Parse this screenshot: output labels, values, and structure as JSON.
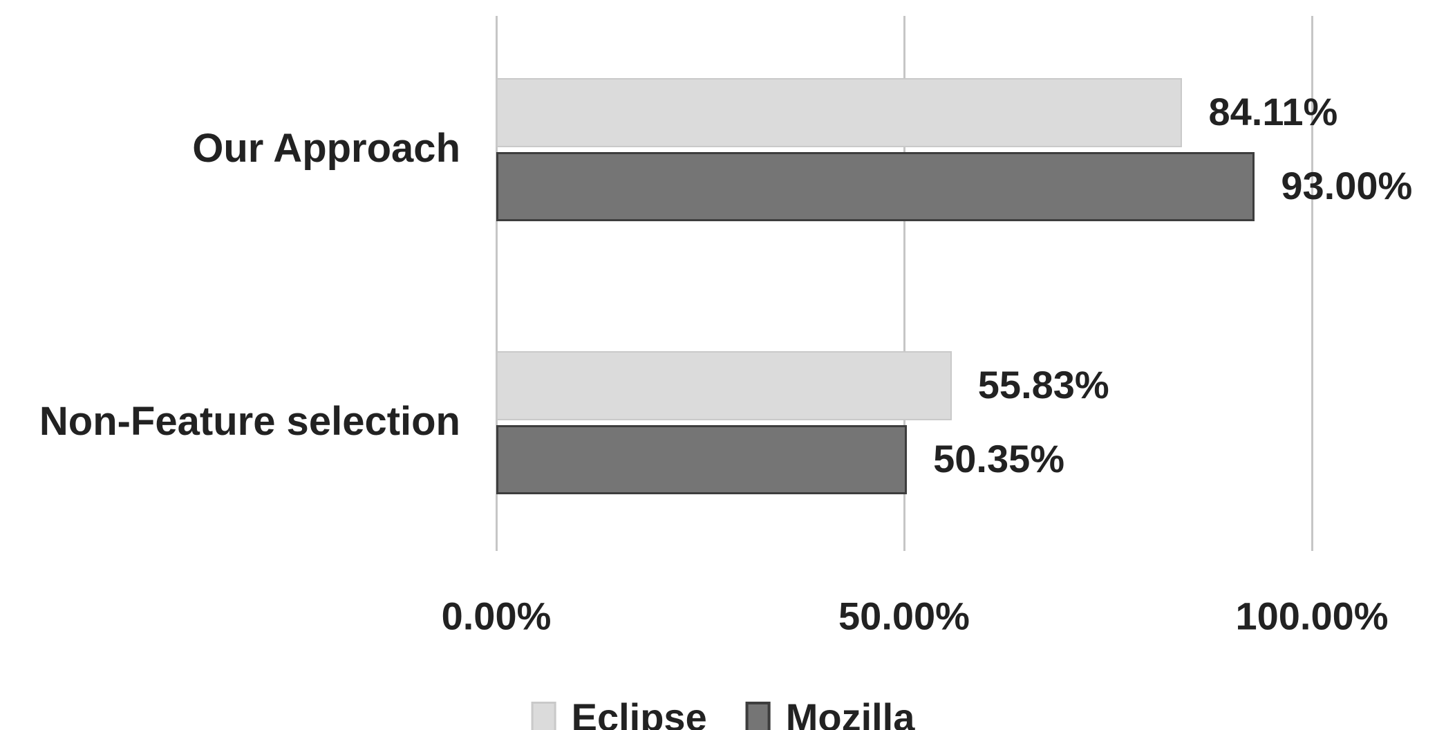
{
  "chart_data": {
    "type": "bar",
    "orientation": "horizontal",
    "categories": [
      "Our Approach",
      "Non-Feature selection"
    ],
    "series": [
      {
        "name": "Eclipse",
        "values": [
          84.11,
          55.83
        ],
        "labels": [
          "84.11%",
          "55.83%"
        ],
        "color": "#dbdbdb",
        "border_color": "#c9c9c9",
        "border_width": 2
      },
      {
        "name": "Mozilla",
        "values": [
          93.0,
          50.35
        ],
        "labels": [
          "93.00%",
          "50.35%"
        ],
        "color": "#757575",
        "border_color": "#3d3d3d",
        "border_width": 3
      }
    ],
    "x_axis": {
      "min": 0,
      "max": 100,
      "ticks": [
        {
          "label": "0.00%",
          "value": 0
        },
        {
          "label": "50.00%",
          "value": 50
        },
        {
          "label": "100.00%",
          "value": 100
        }
      ]
    },
    "legend": {
      "position": "bottom",
      "entries": [
        "Eclipse",
        "Mozilla"
      ]
    },
    "grid": true,
    "colors": {
      "gridline": "#c6c6c6",
      "text": "#222222",
      "background": "#ffffff"
    }
  }
}
